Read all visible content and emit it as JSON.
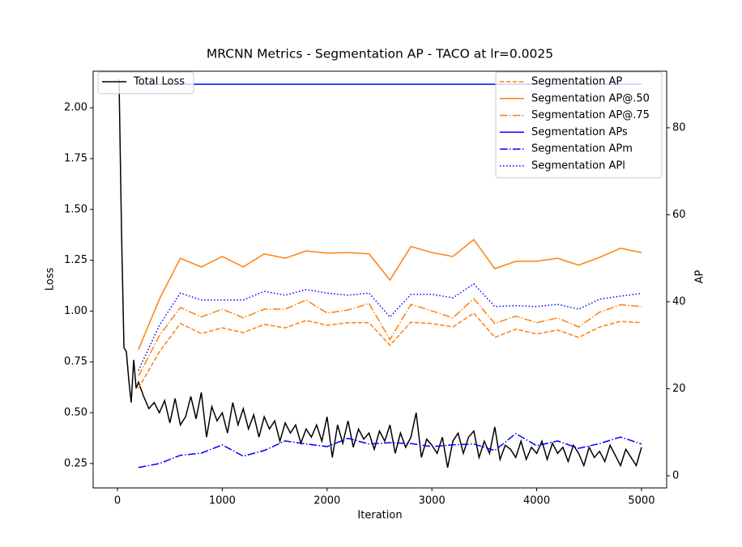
{
  "chart_data": {
    "type": "line",
    "title": "MRCNN Metrics - Segmentation AP - TACO at lr=0.0025",
    "xlabel": "Iteration",
    "ylabel": "Loss",
    "y2label": "AP",
    "xlim": [
      -232,
      5240
    ],
    "ylim": [
      0.13,
      2.18
    ],
    "y2lim": [
      -2.8,
      93
    ],
    "xticks": [
      0,
      1000,
      2000,
      3000,
      4000,
      5000
    ],
    "yticks": [
      0.25,
      {
        "value": 0.5,
        "label": "0.50"
      },
      0.75,
      {
        "value": 1.0,
        "label": "1.00"
      },
      1.25,
      {
        "value": 1.5,
        "label": "1.50"
      },
      1.75,
      {
        "value": 2.0,
        "label": "2.00"
      }
    ],
    "y2ticks": [
      0,
      20,
      40,
      60,
      80
    ],
    "legend": "upper left",
    "legend2": "upper right",
    "series": [
      {
        "name": "Total Loss",
        "color": "#000000",
        "linestyle": "solid",
        "axis": "y",
        "x": [
          15,
          39,
          62,
          85,
          108,
          131,
          155,
          178,
          201,
          250,
          300,
          350,
          400,
          450,
          500,
          550,
          600,
          650,
          700,
          750,
          800,
          850,
          900,
          950,
          1000,
          1050,
          1100,
          1150,
          1200,
          1250,
          1300,
          1350,
          1400,
          1450,
          1500,
          1550,
          1600,
          1650,
          1700,
          1750,
          1800,
          1850,
          1900,
          1950,
          2000,
          2050,
          2100,
          2150,
          2200,
          2250,
          2300,
          2350,
          2400,
          2450,
          2500,
          2550,
          2600,
          2650,
          2700,
          2750,
          2800,
          2850,
          2900,
          2950,
          3000,
          3050,
          3100,
          3150,
          3200,
          3250,
          3300,
          3350,
          3400,
          3450,
          3500,
          3550,
          3600,
          3650,
          3700,
          3750,
          3800,
          3850,
          3900,
          3950,
          4000,
          4050,
          4100,
          4150,
          4200,
          4250,
          4300,
          4350,
          4400,
          4450,
          4500,
          4550,
          4600,
          4650,
          4700,
          4750,
          4800,
          4850,
          4900,
          4950,
          5000
        ],
        "values": [
          2.14,
          1.38,
          0.82,
          0.8,
          0.66,
          0.55,
          0.76,
          0.62,
          0.65,
          0.58,
          0.52,
          0.55,
          0.5,
          0.56,
          0.45,
          0.57,
          0.44,
          0.48,
          0.58,
          0.47,
          0.6,
          0.38,
          0.53,
          0.46,
          0.5,
          0.4,
          0.55,
          0.44,
          0.52,
          0.42,
          0.49,
          0.38,
          0.48,
          0.42,
          0.46,
          0.36,
          0.45,
          0.4,
          0.44,
          0.35,
          0.42,
          0.38,
          0.44,
          0.36,
          0.48,
          0.28,
          0.44,
          0.35,
          0.46,
          0.33,
          0.42,
          0.37,
          0.4,
          0.32,
          0.41,
          0.36,
          0.44,
          0.3,
          0.4,
          0.33,
          0.38,
          0.5,
          0.28,
          0.37,
          0.34,
          0.3,
          0.38,
          0.23,
          0.36,
          0.4,
          0.3,
          0.38,
          0.41,
          0.28,
          0.36,
          0.3,
          0.43,
          0.27,
          0.34,
          0.32,
          0.28,
          0.36,
          0.27,
          0.33,
          0.3,
          0.36,
          0.27,
          0.35,
          0.3,
          0.33,
          0.26,
          0.34,
          0.3,
          0.24,
          0.33,
          0.28,
          0.31,
          0.26,
          0.34,
          0.29,
          0.24,
          0.32,
          0.28,
          0.24,
          0.33
        ]
      },
      {
        "name": "Segmentation AP",
        "color": "#ff7f0e",
        "linestyle": "dashed",
        "axis": "y2",
        "x": [
          200,
          400,
          600,
          800,
          1000,
          1200,
          1400,
          1600,
          1800,
          2000,
          2200,
          2400,
          2600,
          2800,
          3000,
          3200,
          3400,
          3600,
          3800,
          4000,
          4200,
          4400,
          4600,
          4800,
          5000
        ],
        "values": [
          20.1,
          28.5,
          35.0,
          32.7,
          34.0,
          32.9,
          34.8,
          34.0,
          35.7,
          34.6,
          35.2,
          35.2,
          30.0,
          35.3,
          35.0,
          34.2,
          37.4,
          31.8,
          33.7,
          32.6,
          33.5,
          31.8,
          34.2,
          35.5,
          35.2
        ]
      },
      {
        "name": "Segmentation AP@.50",
        "color": "#ff7f0e",
        "linestyle": "solid",
        "axis": "y2",
        "x": [
          200,
          400,
          600,
          800,
          1000,
          1200,
          1400,
          1600,
          1800,
          2000,
          2200,
          2400,
          2600,
          2800,
          3000,
          3200,
          3400,
          3600,
          3800,
          4000,
          4200,
          4400,
          4600,
          4800,
          5000
        ],
        "values": [
          29.0,
          40.6,
          50.0,
          48.0,
          50.4,
          48.0,
          51.0,
          50.0,
          51.7,
          51.2,
          51.3,
          51.0,
          45.0,
          52.7,
          51.3,
          50.4,
          54.3,
          47.6,
          49.3,
          49.3,
          50.0,
          48.4,
          50.2,
          52.3,
          51.3
        ]
      },
      {
        "name": "Segmentation AP@.75",
        "color": "#ff7f0e",
        "linestyle": "dashdot",
        "axis": "y2",
        "x": [
          200,
          400,
          600,
          800,
          1000,
          1200,
          1400,
          1600,
          1800,
          2000,
          2200,
          2400,
          2600,
          2800,
          3000,
          3200,
          3400,
          3600,
          3800,
          4000,
          4200,
          4400,
          4600,
          4800,
          5000
        ],
        "values": [
          22.9,
          32.2,
          38.7,
          36.5,
          38.3,
          36.3,
          38.3,
          38.3,
          40.4,
          37.4,
          38.1,
          39.6,
          31.3,
          39.4,
          37.9,
          36.3,
          40.7,
          35.0,
          36.7,
          35.2,
          36.3,
          34.2,
          37.6,
          39.3,
          38.9
        ]
      },
      {
        "name": "Segmentation APs",
        "color": "#0000ff",
        "linestyle": "solid",
        "axis": "y2",
        "x": [
          200,
          400,
          600,
          800,
          1000,
          1200,
          1400,
          1600,
          1800,
          2000,
          2200,
          2400,
          2600,
          2800,
          3000,
          3200,
          3400,
          3600,
          3800,
          4000,
          4200,
          4400,
          4600,
          4800,
          5000
        ],
        "values": [
          90,
          90,
          90,
          90,
          90,
          90,
          90,
          90,
          90,
          90,
          90,
          90,
          90,
          90,
          90,
          90,
          90,
          90,
          90,
          90,
          90,
          90,
          90,
          90,
          90
        ]
      },
      {
        "name": "Segmentation APm",
        "color": "#0000ff",
        "linestyle": "dashdot",
        "axis": "y2",
        "x": [
          200,
          400,
          600,
          800,
          1000,
          1200,
          1400,
          1600,
          1800,
          2000,
          2200,
          2400,
          2600,
          2800,
          3000,
          3200,
          3400,
          3600,
          3800,
          4000,
          4200,
          4400,
          4600,
          4800,
          5000
        ],
        "values": [
          1.9,
          2.8,
          4.7,
          5.2,
          7.1,
          4.5,
          5.8,
          8.0,
          7.3,
          6.7,
          8.6,
          7.3,
          7.6,
          7.4,
          6.7,
          7.1,
          7.3,
          5.8,
          9.7,
          6.9,
          8.0,
          6.3,
          7.4,
          8.9,
          7.3
        ]
      },
      {
        "name": "Segmentation APl",
        "color": "#0000ff",
        "linestyle": "dotted",
        "axis": "y2",
        "x": [
          200,
          400,
          600,
          800,
          1000,
          1200,
          1400,
          1600,
          1800,
          2000,
          2200,
          2400,
          2600,
          2800,
          3000,
          3200,
          3400,
          3600,
          3800,
          4000,
          4200,
          4400,
          4600,
          4800,
          5000
        ],
        "values": [
          24.2,
          34.6,
          42.0,
          40.4,
          40.4,
          40.4,
          42.4,
          41.5,
          42.8,
          42.0,
          41.5,
          42.0,
          36.5,
          41.7,
          41.7,
          40.9,
          44.1,
          38.9,
          39.1,
          38.9,
          39.4,
          38.3,
          40.6,
          41.3,
          41.9
        ]
      }
    ]
  }
}
